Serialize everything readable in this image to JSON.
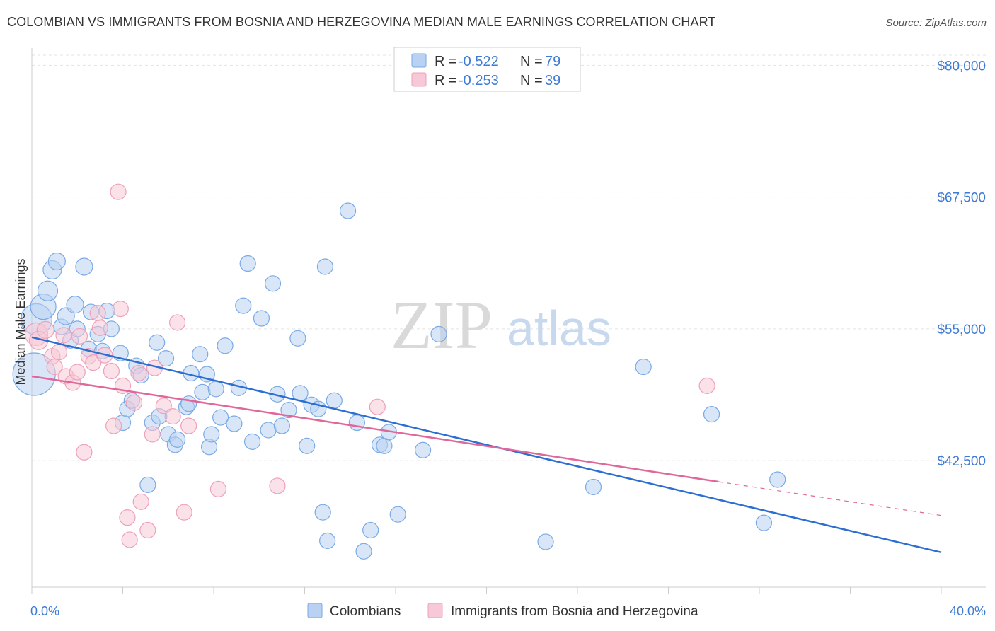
{
  "title": "COLOMBIAN VS IMMIGRANTS FROM BOSNIA AND HERZEGOVINA MEDIAN MALE EARNINGS CORRELATION CHART",
  "source": "Source: ZipAtlas.com",
  "watermark": {
    "part1": "ZIP",
    "part2": "atlas"
  },
  "chart_data": {
    "type": "scatter",
    "ylabel": "Median Male Earnings",
    "xlim": [
      0,
      40
    ],
    "ylim": [
      30500,
      81500
    ],
    "y_ticks": [
      {
        "value": 42500,
        "label": "$42,500"
      },
      {
        "value": 55000,
        "label": "$55,000"
      },
      {
        "value": 67500,
        "label": "$67,500"
      },
      {
        "value": 80000,
        "label": "$80,000"
      }
    ],
    "x_tick_labels": {
      "min": "0.0%",
      "max": "40.0%"
    },
    "grid": true,
    "legend_position": "top-center",
    "stats": [
      {
        "r_label": "R =",
        "r": "-0.522",
        "n_label": "N =",
        "n": "79"
      },
      {
        "r_label": "R =",
        "r": "-0.253",
        "n_label": "N =",
        "n": "39"
      }
    ],
    "series": [
      {
        "name": "Colombians",
        "color": "#7aaae6",
        "fill": "#b9d2f3",
        "line_color": "#2c6fd1",
        "trend": {
          "x0": 0,
          "y0": 54200,
          "x1": 40,
          "y1": 33800
        },
        "points": [
          [
            0.1,
            50700,
            30
          ],
          [
            0.2,
            55900,
            22
          ],
          [
            0.5,
            57100,
            18
          ],
          [
            0.7,
            58600,
            14
          ],
          [
            0.9,
            60600,
            13
          ],
          [
            1.1,
            61400,
            12
          ],
          [
            1.3,
            55200,
            11
          ],
          [
            1.5,
            56200,
            12
          ],
          [
            1.7,
            53900,
            11
          ],
          [
            1.9,
            57300,
            12
          ],
          [
            2.0,
            55000,
            11
          ],
          [
            2.3,
            60900,
            12
          ],
          [
            2.5,
            53100,
            11
          ],
          [
            2.6,
            56600,
            11
          ],
          [
            2.9,
            54500,
            11
          ],
          [
            3.1,
            52900,
            11
          ],
          [
            3.3,
            56700,
            11
          ],
          [
            3.5,
            55000,
            11
          ],
          [
            3.9,
            52700,
            11
          ],
          [
            4.0,
            46100,
            11
          ],
          [
            4.2,
            47400,
            11
          ],
          [
            4.4,
            48200,
            11
          ],
          [
            4.6,
            51500,
            11
          ],
          [
            4.8,
            50600,
            11
          ],
          [
            5.1,
            40200,
            11
          ],
          [
            5.3,
            46100,
            11
          ],
          [
            5.5,
            53700,
            11
          ],
          [
            5.6,
            46700,
            11
          ],
          [
            5.9,
            52200,
            11
          ],
          [
            6.0,
            45000,
            11
          ],
          [
            6.3,
            44000,
            11
          ],
          [
            6.4,
            44500,
            11
          ],
          [
            6.8,
            47600,
            11
          ],
          [
            6.9,
            47900,
            11
          ],
          [
            7.0,
            50800,
            11
          ],
          [
            7.4,
            52600,
            11
          ],
          [
            7.5,
            49000,
            11
          ],
          [
            7.7,
            50700,
            11
          ],
          [
            7.8,
            43800,
            11
          ],
          [
            7.9,
            45000,
            11
          ],
          [
            8.1,
            49300,
            11
          ],
          [
            8.3,
            46600,
            11
          ],
          [
            8.5,
            53400,
            11
          ],
          [
            8.9,
            46000,
            11
          ],
          [
            9.1,
            49400,
            11
          ],
          [
            9.3,
            57200,
            11
          ],
          [
            9.5,
            61200,
            11
          ],
          [
            9.7,
            44300,
            11
          ],
          [
            10.1,
            56000,
            11
          ],
          [
            10.4,
            45400,
            11
          ],
          [
            10.6,
            59300,
            11
          ],
          [
            10.8,
            48800,
            11
          ],
          [
            11.0,
            45800,
            11
          ],
          [
            11.3,
            47300,
            11
          ],
          [
            11.7,
            54100,
            11
          ],
          [
            11.8,
            48900,
            11
          ],
          [
            12.1,
            43900,
            11
          ],
          [
            12.3,
            47800,
            11
          ],
          [
            12.6,
            47400,
            11
          ],
          [
            12.8,
            37600,
            11
          ],
          [
            12.9,
            60900,
            11
          ],
          [
            13.0,
            34900,
            11
          ],
          [
            13.3,
            48200,
            11
          ],
          [
            13.9,
            66200,
            11
          ],
          [
            14.3,
            46100,
            11
          ],
          [
            14.6,
            33900,
            11
          ],
          [
            14.9,
            35900,
            11
          ],
          [
            15.3,
            44000,
            11
          ],
          [
            15.5,
            43900,
            11
          ],
          [
            15.7,
            45200,
            11
          ],
          [
            16.1,
            37400,
            11
          ],
          [
            17.2,
            43500,
            11
          ],
          [
            17.9,
            54500,
            11
          ],
          [
            22.6,
            34800,
            11
          ],
          [
            24.7,
            40000,
            11
          ],
          [
            26.9,
            51400,
            11
          ],
          [
            29.9,
            46900,
            11
          ],
          [
            32.2,
            36600,
            11
          ],
          [
            32.8,
            40700,
            11
          ]
        ]
      },
      {
        "name": "Immigrants from Bosnia and Herzegovina",
        "color": "#eea1b9",
        "fill": "#f7c8d6",
        "line_color": "#e0679a",
        "trend": {
          "x0": 0,
          "y0": 50500,
          "x1": 30.2,
          "y1": 40500
        },
        "trend_dashed": {
          "x0": 30.2,
          "y0": 40500,
          "x1": 40,
          "y1": 37300
        },
        "points": [
          [
            0.2,
            54500,
            16
          ],
          [
            0.3,
            53900,
            13
          ],
          [
            0.6,
            54900,
            12
          ],
          [
            0.9,
            52400,
            11
          ],
          [
            1.0,
            51400,
            11
          ],
          [
            1.2,
            52800,
            11
          ],
          [
            1.4,
            54400,
            11
          ],
          [
            1.5,
            50500,
            11
          ],
          [
            1.8,
            49900,
            11
          ],
          [
            2.0,
            50900,
            11
          ],
          [
            2.1,
            54300,
            11
          ],
          [
            2.3,
            43300,
            11
          ],
          [
            2.5,
            52400,
            11
          ],
          [
            2.7,
            51800,
            11
          ],
          [
            2.9,
            56500,
            11
          ],
          [
            3.0,
            55100,
            11
          ],
          [
            3.2,
            52500,
            11
          ],
          [
            3.5,
            51000,
            11
          ],
          [
            3.6,
            45800,
            11
          ],
          [
            3.8,
            68000,
            11
          ],
          [
            3.9,
            56900,
            11
          ],
          [
            4.0,
            49600,
            11
          ],
          [
            4.2,
            37100,
            11
          ],
          [
            4.3,
            35000,
            11
          ],
          [
            4.5,
            48000,
            11
          ],
          [
            4.7,
            50800,
            11
          ],
          [
            4.8,
            38600,
            11
          ],
          [
            5.1,
            35900,
            11
          ],
          [
            5.3,
            45000,
            11
          ],
          [
            5.4,
            51300,
            11
          ],
          [
            5.8,
            47700,
            11
          ],
          [
            6.2,
            46700,
            11
          ],
          [
            6.4,
            55600,
            11
          ],
          [
            6.7,
            37600,
            11
          ],
          [
            6.9,
            45800,
            11
          ],
          [
            8.2,
            39800,
            11
          ],
          [
            10.8,
            40100,
            11
          ],
          [
            15.2,
            47600,
            11
          ],
          [
            29.7,
            49600,
            11
          ]
        ]
      }
    ]
  }
}
